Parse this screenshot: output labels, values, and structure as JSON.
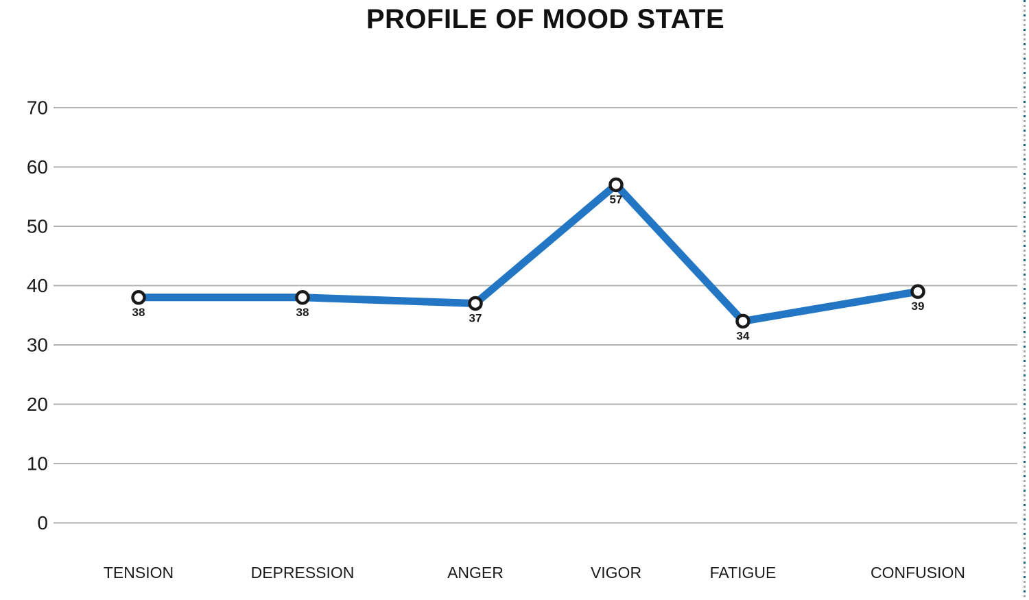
{
  "page": {
    "background": "#FFFFFF"
  },
  "chart_data": {
    "type": "line",
    "title": "PROFILE OF MOOD STATE",
    "categories": [
      "TENSION",
      "DEPRESSION",
      "ANGER",
      "VIGOR",
      "FATIGUE",
      "CONFUSION"
    ],
    "values": [
      38,
      38,
      37,
      57,
      34,
      39
    ],
    "data_labels": [
      "38",
      "38",
      "37",
      "57",
      "34",
      "39"
    ],
    "y_ticks": [
      0,
      10,
      20,
      30,
      40,
      50,
      60,
      70
    ],
    "ylim": [
      0,
      70
    ],
    "grid": "horizontal",
    "legend": "none",
    "colors": {
      "line": "#2276C4",
      "marker_fill": "#FFFFFF",
      "marker_stroke": "#1A1A1A",
      "gridline": "#B3B3B3",
      "text": "#1A1A1A"
    }
  },
  "page_break_indicator": {
    "dash_colors": [
      "#19647A",
      "#A8A8A8"
    ]
  }
}
